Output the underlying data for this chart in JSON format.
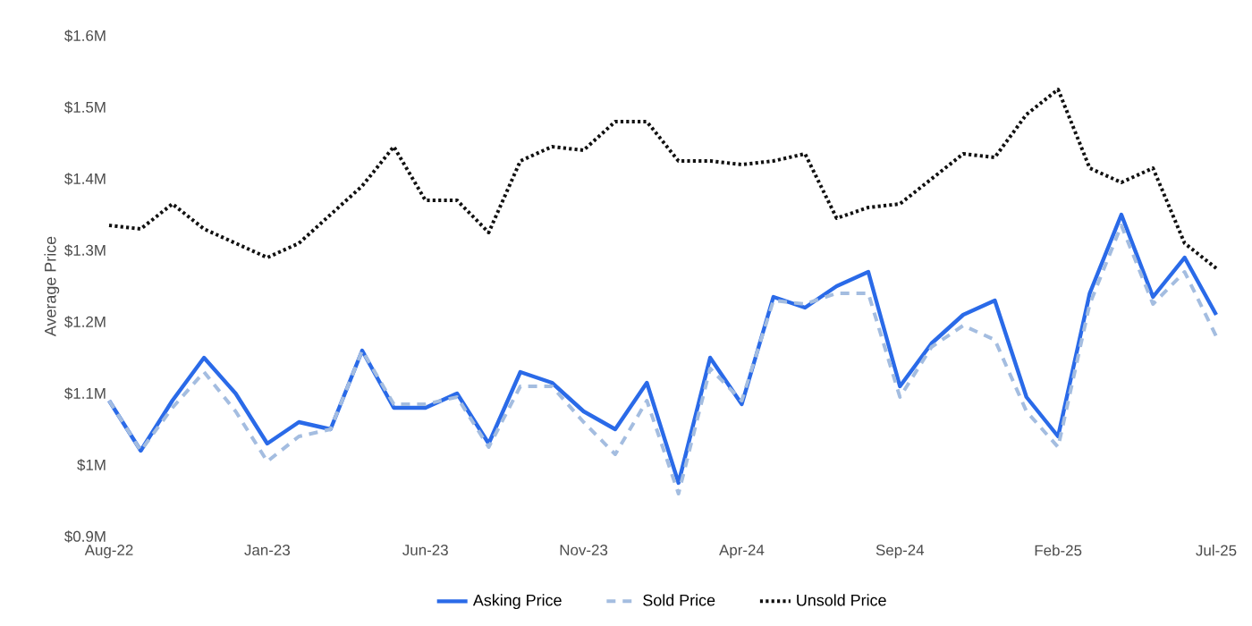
{
  "chart_data": {
    "type": "line",
    "ylabel": "Average Price",
    "x": [
      "2022-08",
      "2022-09",
      "2022-10",
      "2022-11",
      "2022-12",
      "2023-01",
      "2023-02",
      "2023-03",
      "2023-04",
      "2023-05",
      "2023-06",
      "2023-07",
      "2023-08",
      "2023-09",
      "2023-10",
      "2023-11",
      "2023-12",
      "2024-01",
      "2024-02",
      "2024-03",
      "2024-04",
      "2024-05",
      "2024-06",
      "2024-07",
      "2024-08",
      "2024-09",
      "2024-10",
      "2024-11",
      "2024-12",
      "2025-01",
      "2025-02",
      "2025-03",
      "2025-04",
      "2025-05",
      "2025-06",
      "2025-07"
    ],
    "xlim": [
      "2022-08",
      "2025-07"
    ],
    "xticks": [
      {
        "value": "2022-08",
        "label": "Aug-22"
      },
      {
        "value": "2023-01",
        "label": "Jan-23"
      },
      {
        "value": "2023-06",
        "label": "Jun-23"
      },
      {
        "value": "2023-11",
        "label": "Nov-23"
      },
      {
        "value": "2024-04",
        "label": "Apr-24"
      },
      {
        "value": "2024-09",
        "label": "Sep-24"
      },
      {
        "value": "2025-02",
        "label": "Feb-25"
      },
      {
        "value": "2025-07",
        "label": "Jul-25"
      }
    ],
    "ylim": [
      0.9,
      1.6
    ],
    "yticks": [
      {
        "value": 0.9,
        "label": "$0.9M"
      },
      {
        "value": 1.0,
        "label": "$1M"
      },
      {
        "value": 1.1,
        "label": "$1.1M"
      },
      {
        "value": 1.2,
        "label": "$1.2M"
      },
      {
        "value": 1.3,
        "label": "$1.3M"
      },
      {
        "value": 1.4,
        "label": "$1.4M"
      },
      {
        "value": 1.5,
        "label": "$1.5M"
      },
      {
        "value": 1.6,
        "label": "$1.6M"
      }
    ],
    "grid": false,
    "legend": "bottom",
    "series": [
      {
        "name": "Asking Price",
        "color": "#2a6ae8",
        "line_style": "solid",
        "values": [
          1.09,
          1.02,
          1.09,
          1.15,
          1.1,
          1.03,
          1.06,
          1.05,
          1.16,
          1.08,
          1.08,
          1.1,
          1.03,
          1.13,
          1.115,
          1.075,
          1.05,
          1.115,
          0.975,
          1.15,
          1.085,
          1.235,
          1.22,
          1.25,
          1.27,
          1.11,
          1.17,
          1.21,
          1.23,
          1.095,
          1.04,
          1.24,
          1.35,
          1.235,
          1.29,
          1.21
        ]
      },
      {
        "name": "Sold Price",
        "color": "#a4bde0",
        "line_style": "dashed",
        "values": [
          1.09,
          1.02,
          1.08,
          1.13,
          1.075,
          1.005,
          1.04,
          1.05,
          1.16,
          1.085,
          1.085,
          1.095,
          1.025,
          1.11,
          1.11,
          1.06,
          1.015,
          1.09,
          0.96,
          1.135,
          1.09,
          1.23,
          1.225,
          1.24,
          1.24,
          1.095,
          1.165,
          1.195,
          1.175,
          1.075,
          1.025,
          1.225,
          1.335,
          1.225,
          1.27,
          1.18
        ]
      },
      {
        "name": "Unsold Price",
        "color": "#111111",
        "line_style": "dotted",
        "values": [
          1.335,
          1.33,
          1.365,
          1.33,
          1.31,
          1.29,
          1.31,
          1.35,
          1.39,
          1.445,
          1.37,
          1.37,
          1.325,
          1.425,
          1.445,
          1.44,
          1.48,
          1.48,
          1.425,
          1.425,
          1.42,
          1.425,
          1.435,
          1.345,
          1.36,
          1.365,
          1.4,
          1.435,
          1.43,
          1.49,
          1.525,
          1.415,
          1.395,
          1.415,
          1.31,
          1.275
        ]
      }
    ]
  }
}
